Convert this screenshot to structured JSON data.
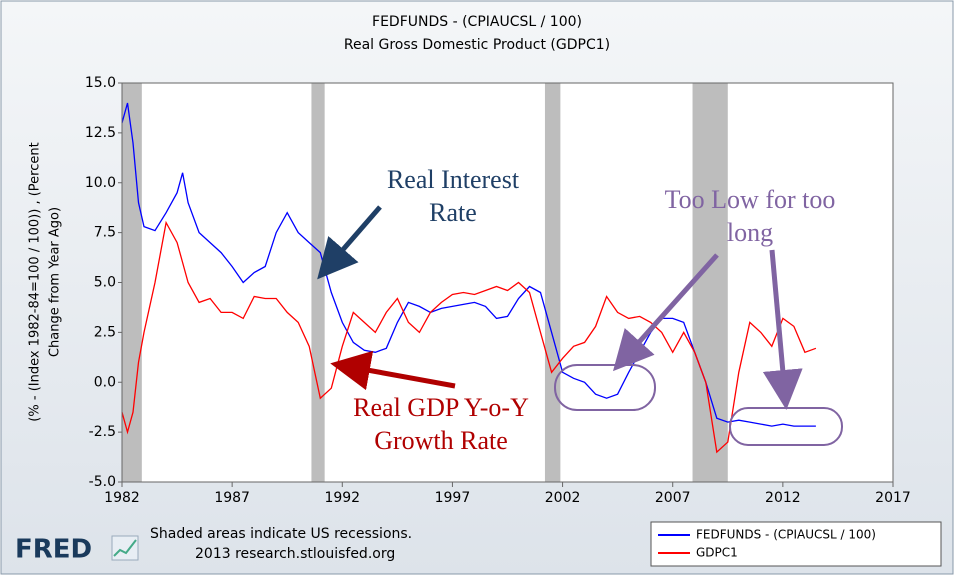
{
  "chart_data": {
    "type": "line",
    "title": "FEDFUNDS - (CPIAUCSL / 100)",
    "subtitle": "Real Gross Domestic Product (GDPC1)",
    "y_label_lines": [
      "(% - (Index 1982-84=100 / 100)) , (Percent",
      "Change from Year Ago)"
    ],
    "x": [
      1982.0,
      1982.25,
      1982.5,
      1982.75,
      1983.0,
      1983.5,
      1984.0,
      1984.5,
      1984.75,
      1985.0,
      1985.5,
      1986.0,
      1986.5,
      1987.0,
      1987.5,
      1988.0,
      1988.5,
      1989.0,
      1989.5,
      1990.0,
      1990.5,
      1991.0,
      1991.5,
      1992.0,
      1992.5,
      1993.0,
      1993.5,
      1994.0,
      1994.5,
      1995.0,
      1995.5,
      1996.0,
      1996.5,
      1997.0,
      1997.5,
      1998.0,
      1998.5,
      1999.0,
      1999.5,
      2000.0,
      2000.5,
      2001.0,
      2001.5,
      2002.0,
      2002.5,
      2003.0,
      2003.5,
      2004.0,
      2004.5,
      2005.0,
      2005.5,
      2006.0,
      2006.5,
      2007.0,
      2007.5,
      2008.0,
      2008.5,
      2009.0,
      2009.5,
      2010.0,
      2010.5,
      2011.0,
      2011.5,
      2012.0,
      2012.5,
      2013.0,
      2013.5
    ],
    "series": [
      {
        "name": "FEDFUNDS - (CPIAUCSL / 100)",
        "color": "#0000ff",
        "values": [
          13.0,
          14.0,
          12.0,
          9.0,
          7.8,
          7.6,
          8.5,
          9.5,
          10.5,
          9.0,
          7.5,
          7.0,
          6.5,
          5.8,
          5.0,
          5.5,
          5.8,
          7.5,
          8.5,
          7.5,
          7.0,
          6.5,
          4.5,
          3.0,
          2.0,
          1.6,
          1.5,
          1.7,
          3.0,
          4.0,
          3.8,
          3.5,
          3.7,
          3.8,
          3.9,
          4.0,
          3.8,
          3.2,
          3.3,
          4.2,
          4.8,
          4.5,
          2.5,
          0.5,
          0.2,
          0.0,
          -0.6,
          -0.8,
          -0.6,
          0.5,
          1.5,
          2.5,
          3.2,
          3.2,
          3.0,
          1.5,
          0.0,
          -1.8,
          -2.0,
          -1.9,
          -2.0,
          -2.1,
          -2.2,
          -2.1,
          -2.2,
          -2.2,
          -2.2
        ]
      },
      {
        "name": "GDPC1",
        "color": "#ff0000",
        "values": [
          -1.5,
          -2.5,
          -1.5,
          1.0,
          2.5,
          5.0,
          8.0,
          7.0,
          6.0,
          5.0,
          4.0,
          4.2,
          3.5,
          3.5,
          3.2,
          4.3,
          4.2,
          4.2,
          3.5,
          3.0,
          1.8,
          -0.8,
          -0.3,
          1.8,
          3.5,
          3.0,
          2.5,
          3.5,
          4.2,
          3.0,
          2.5,
          3.5,
          4.0,
          4.4,
          4.5,
          4.4,
          4.6,
          4.8,
          4.6,
          5.0,
          4.5,
          2.5,
          0.5,
          1.2,
          1.8,
          2.0,
          2.8,
          4.3,
          3.5,
          3.2,
          3.3,
          3.0,
          2.5,
          1.5,
          2.5,
          1.5,
          0.0,
          -3.5,
          -3.0,
          0.5,
          3.0,
          2.5,
          1.8,
          3.2,
          2.8,
          1.5,
          1.7
        ]
      }
    ],
    "recessions": [
      [
        1982.0,
        1982.9
      ],
      [
        1990.6,
        1991.2
      ],
      [
        2001.2,
        2001.9
      ],
      [
        2007.9,
        2009.5
      ]
    ],
    "xlim": [
      1982,
      2017
    ],
    "xticks": [
      1982,
      1987,
      1992,
      1997,
      2002,
      2007,
      2012,
      2017
    ],
    "ylim": [
      -5,
      15
    ],
    "yticks": [
      {
        "value": -5,
        "label": "-5.0"
      },
      {
        "value": -2.5,
        "label": "-2.5"
      },
      {
        "value": 0,
        "label": "0.0"
      },
      {
        "value": 2.5,
        "label": "2.5"
      },
      {
        "value": 5,
        "label": "5.0"
      },
      {
        "value": 7.5,
        "label": "7.5"
      },
      {
        "value": 10,
        "label": "10.0"
      },
      {
        "value": 12.5,
        "label": "12.5"
      },
      {
        "value": 15,
        "label": "15.0"
      }
    ],
    "grid": false,
    "annotations": [
      {
        "lines": [
          "Real Interest",
          "Rate"
        ],
        "color": "#1f3f66"
      },
      {
        "lines": [
          "Real GDP Y-o-Y",
          "Growth Rate"
        ],
        "color": "#b00000"
      },
      {
        "lines": [
          "Too Low for too",
          "long"
        ],
        "color": "#8064a2"
      }
    ]
  },
  "footer": {
    "note": "Shaded areas indicate US recessions.",
    "source": "2013 research.stlouisfed.org",
    "logo": "FRED"
  }
}
